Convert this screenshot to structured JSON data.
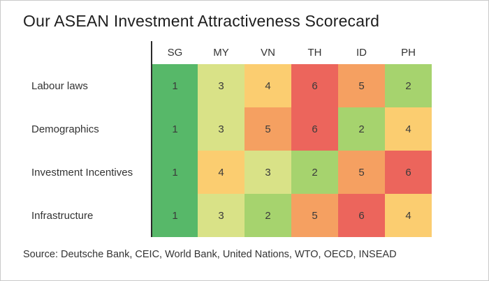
{
  "page": {
    "source": "Source: Deutsche Bank, CEIC, World Bank, United Nations, WTO, OECD,  INSEAD"
  },
  "chart_data": {
    "type": "heatmap",
    "title": "Our ASEAN Investment Attractiveness Scorecard",
    "columns": [
      "SG",
      "MY",
      "VN",
      "TH",
      "ID",
      "PH"
    ],
    "rows": [
      {
        "label": "Labour laws",
        "values": [
          1,
          3,
          4,
          6,
          5,
          2
        ]
      },
      {
        "label": "Demographics",
        "values": [
          1,
          3,
          5,
          6,
          2,
          4
        ]
      },
      {
        "label": "Investment Incentives",
        "values": [
          1,
          4,
          3,
          2,
          5,
          6
        ]
      },
      {
        "label": "Infrastructure",
        "values": [
          1,
          3,
          2,
          5,
          6,
          4
        ]
      }
    ],
    "value_range": [
      1,
      6
    ],
    "color_scale": {
      "1": "#57b869",
      "2": "#a6d36e",
      "3": "#d9e287",
      "4": "#fbcd70",
      "5": "#f5a061",
      "6": "#ec655c"
    }
  }
}
